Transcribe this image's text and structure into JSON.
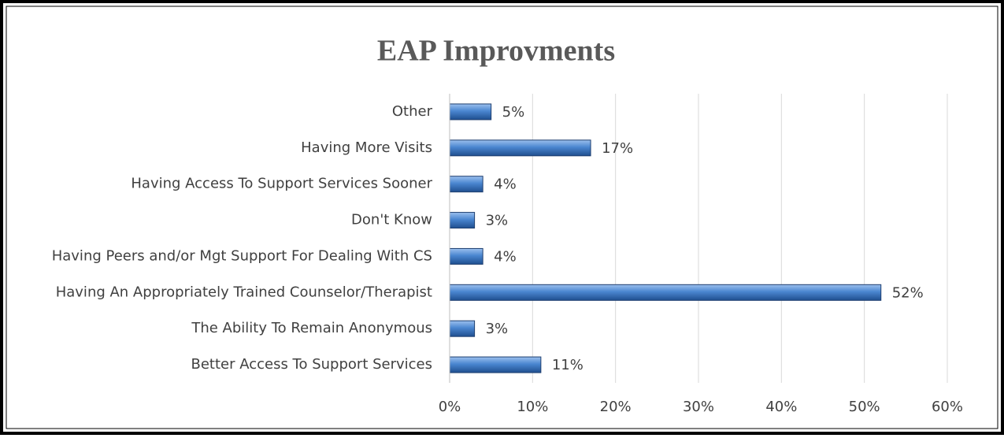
{
  "chart_data": {
    "type": "bar",
    "orientation": "horizontal",
    "title": "EAP Improvments",
    "categories": [
      "Other",
      "Having More Visits",
      "Having Access To Support Services Sooner",
      "Don't Know",
      "Having Peers and/or Mgt Support For Dealing With CS",
      "Having An Appropriately Trained Counselor/Therapist",
      "The Ability To Remain Anonymous",
      "Better Access To Support Services"
    ],
    "values": [
      5,
      17,
      4,
      3,
      4,
      52,
      3,
      11
    ],
    "value_labels": [
      "5%",
      "17%",
      "4%",
      "3%",
      "4%",
      "52%",
      "3%",
      "11%"
    ],
    "color": "#4a86d0",
    "xlim": [
      0,
      60
    ],
    "xticks": [
      {
        "value": 0,
        "label": "0%"
      },
      {
        "value": 10,
        "label": "10%"
      },
      {
        "value": 20,
        "label": "20%"
      },
      {
        "value": 30,
        "label": "30%"
      },
      {
        "value": 40,
        "label": "40%"
      },
      {
        "value": 50,
        "label": "50%"
      },
      {
        "value": 60,
        "label": "60%"
      }
    ],
    "grid": true
  }
}
